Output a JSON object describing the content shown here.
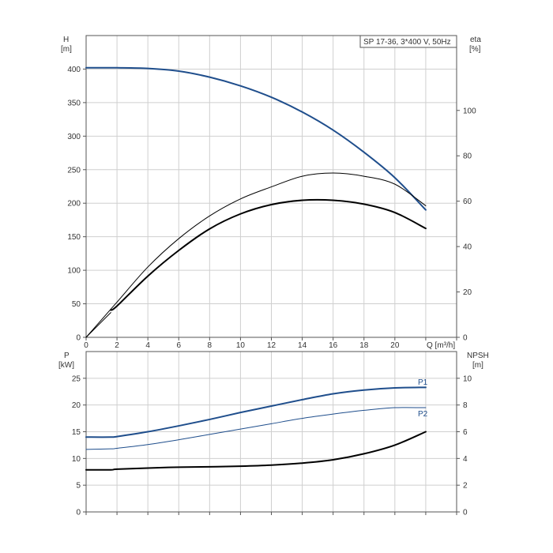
{
  "chart_data": [
    {
      "type": "line",
      "title": "SP 17-36, 3*400 V, 50Hz",
      "xlabel": "Q [m³/h]",
      "ylabel_left": "H",
      "ylabel_left_unit": "[m]",
      "ylabel_right": "eta",
      "ylabel_right_unit": "[%]",
      "xlim": [
        0,
        24
      ],
      "ylim_left": [
        0,
        450
      ],
      "ylim_right": [
        0,
        133
      ],
      "x_ticks": [
        0,
        2,
        4,
        6,
        8,
        10,
        12,
        14,
        16,
        18,
        20
      ],
      "y_left_ticks": [
        0,
        50,
        100,
        150,
        200,
        250,
        300,
        350,
        400
      ],
      "y_right_ticks": [
        0,
        20,
        40,
        60,
        80,
        100
      ],
      "grid": true,
      "series": [
        {
          "axis": "left",
          "color": "#1f4e8c",
          "width": 2,
          "x": [
            0,
            1.6,
            2,
            4,
            6,
            8,
            10,
            12,
            14,
            16,
            18,
            20,
            22
          ],
          "y": [
            402,
            402,
            402,
            401,
            397,
            388,
            375,
            358,
            336,
            309,
            276,
            238,
            190
          ]
        },
        {
          "axis": "left",
          "color": "#1f4e8c",
          "width": 1,
          "x": [
            0,
            1.6
          ],
          "y": [
            402,
            402
          ]
        },
        {
          "axis": "right",
          "color": "#000000",
          "width": 1,
          "x": [
            0,
            2,
            4,
            6,
            8,
            10,
            12,
            14,
            16,
            18,
            20,
            22
          ],
          "y": [
            0,
            15.5,
            31,
            43.5,
            53.5,
            61,
            66.3,
            71,
            72.4,
            71,
            67.5,
            58
          ]
        },
        {
          "axis": "right",
          "color": "#000000",
          "width": 2,
          "x": [
            1.6,
            2,
            4,
            6,
            8,
            10,
            12,
            14,
            16,
            18,
            20,
            22
          ],
          "y": [
            12,
            13.8,
            27,
            38.3,
            47.8,
            54.4,
            58.5,
            60.4,
            60.4,
            58.7,
            55,
            48
          ]
        },
        {
          "axis": "left",
          "color": "#000000",
          "width": 1,
          "x": [
            0,
            1.6
          ],
          "y": [
            0,
            37
          ]
        }
      ]
    },
    {
      "type": "line",
      "xlabel": "",
      "ylabel_left": "P",
      "ylabel_left_unit": "[kW]",
      "ylabel_right": "NPSH",
      "ylabel_right_unit": "[m]",
      "xlim": [
        0,
        24
      ],
      "ylim_left": [
        0,
        30
      ],
      "ylim_right": [
        0,
        12
      ],
      "y_left_ticks": [
        0,
        5,
        10,
        15,
        20,
        25
      ],
      "y_right_ticks": [
        0,
        2,
        4,
        6,
        8,
        10
      ],
      "grid": true,
      "series": [
        {
          "name": "P1",
          "axis": "left",
          "color": "#1f4e8c",
          "width": 2,
          "x": [
            0,
            1.6,
            2,
            4,
            6,
            8,
            10,
            12,
            14,
            16,
            18,
            20,
            22
          ],
          "y": [
            14,
            14,
            14.1,
            15,
            16.1,
            17.3,
            18.6,
            19.8,
            21,
            22.1,
            22.8,
            23.2,
            23.3
          ]
        },
        {
          "name": "P2",
          "axis": "left",
          "color": "#1f4e8c",
          "width": 1,
          "x": [
            0,
            1.6,
            2,
            4,
            6,
            8,
            10,
            12,
            14,
            16,
            18,
            20,
            22
          ],
          "y": [
            11.7,
            11.8,
            11.9,
            12.6,
            13.5,
            14.5,
            15.5,
            16.5,
            17.5,
            18.3,
            19,
            19.5,
            19.5
          ]
        },
        {
          "axis": "right",
          "color": "#000000",
          "width": 2,
          "x": [
            0,
            1.6,
            2,
            4,
            6,
            8,
            10,
            12,
            14,
            16,
            18,
            20,
            22
          ],
          "y": [
            3.15,
            3.15,
            3.2,
            3.28,
            3.35,
            3.38,
            3.42,
            3.5,
            3.65,
            3.9,
            4.35,
            5.0,
            6.0
          ]
        }
      ]
    }
  ]
}
